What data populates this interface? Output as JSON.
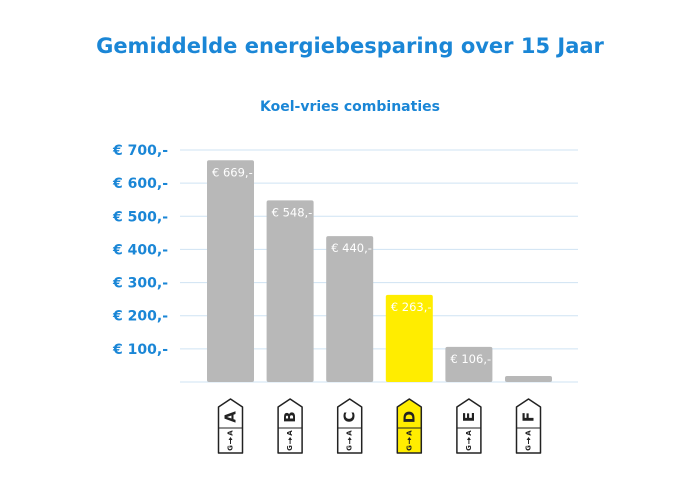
{
  "chart_data": {
    "type": "bar",
    "title": "Gemiddelde energiebesparing over 15 Jaar",
    "subtitle": "Koel-vries combinaties",
    "categories": [
      "A",
      "B",
      "C",
      "D",
      "E",
      "F"
    ],
    "values": [
      669,
      548,
      440,
      263,
      106,
      18
    ],
    "data_labels": [
      "€ 669,-",
      "€ 548,-",
      "€ 440,-",
      "€ 263,-",
      "€ 106,-",
      ""
    ],
    "ylim": [
      0,
      700
    ],
    "yticks": [
      100,
      200,
      300,
      400,
      500,
      600,
      700
    ],
    "ytick_labels": [
      "€ 100,-",
      "€ 200,-",
      "€ 300,-",
      "€ 400,-",
      "€ 500,-",
      "€ 600,-",
      "€ 700,-"
    ],
    "label_scale": [
      "A",
      "G"
    ],
    "highlight_category": "D",
    "grid": true,
    "legend": "none"
  },
  "colors": {
    "title": "#1a86d6",
    "bar": "#b8b8b8",
    "highlight": "#ffed00",
    "grid": "#cfe3f3",
    "data_label": "#ffffff"
  }
}
